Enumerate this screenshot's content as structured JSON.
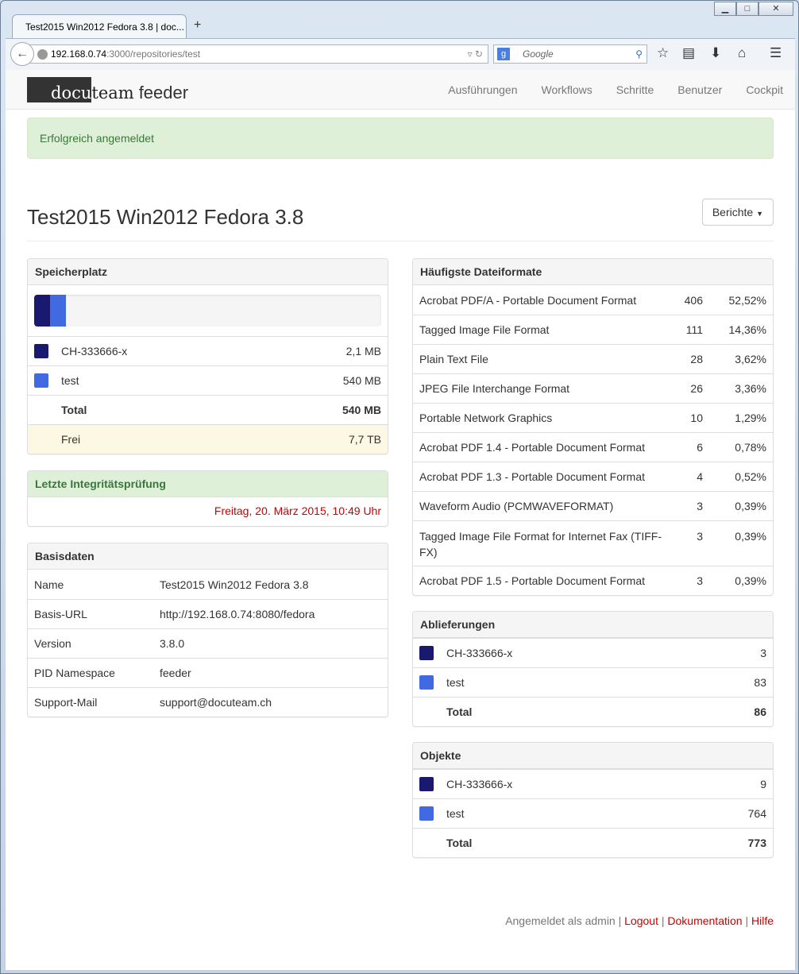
{
  "browser": {
    "tab_title": "Test2015 Win2012 Fedora 3.8 | doc...",
    "url_host": "192.168.0.74",
    "url_path": ":3000/repositories/test",
    "search_placeholder": "Google"
  },
  "nav": {
    "logo_docu": "docu",
    "logo_team": "team",
    "logo_feeder": "feeder",
    "items": [
      "Ausführungen",
      "Workflows",
      "Schritte",
      "Benutzer",
      "Cockpit"
    ]
  },
  "alert": "Erfolgreich angemeldet",
  "title": "Test2015 Win2012 Fedora 3.8",
  "reports_button": "Berichte",
  "colors": {
    "dark": "#191970",
    "blue": "#4169e1"
  },
  "storage": {
    "title": "Speicherplatz",
    "bar_percent": [
      4.6,
      4.6
    ],
    "rows": [
      {
        "name": "CH-333666-x",
        "value": "2,1 MB"
      },
      {
        "name": "test",
        "value": "540 MB"
      }
    ],
    "total_label": "Total",
    "total": "540 MB",
    "free_label": "Frei",
    "free": "7,7 TB"
  },
  "integrity": {
    "title": "Letzte Integritätsprüfung",
    "date": "Freitag, 20. März 2015, 10:49 Uhr"
  },
  "basis": {
    "title": "Basisdaten",
    "rows": [
      {
        "k": "Name",
        "v": "Test2015 Win2012 Fedora 3.8"
      },
      {
        "k": "Basis-URL",
        "v": "http://192.168.0.74:8080/fedora"
      },
      {
        "k": "Version",
        "v": "3.8.0"
      },
      {
        "k": "PID Namespace",
        "v": "feeder"
      },
      {
        "k": "Support-Mail",
        "v": "support@docuteam.ch"
      }
    ]
  },
  "formats": {
    "title": "Häufigste Dateiformate",
    "rows": [
      {
        "n": "Acrobat PDF/A - Portable Document Format",
        "c": "406",
        "p": "52,52%"
      },
      {
        "n": "Tagged Image File Format",
        "c": "111",
        "p": "14,36%"
      },
      {
        "n": "Plain Text File",
        "c": "28",
        "p": "3,62%"
      },
      {
        "n": "JPEG File Interchange Format",
        "c": "26",
        "p": "3,36%"
      },
      {
        "n": "Portable Network Graphics",
        "c": "10",
        "p": "1,29%"
      },
      {
        "n": "Acrobat PDF 1.4 - Portable Document Format",
        "c": "6",
        "p": "0,78%"
      },
      {
        "n": "Acrobat PDF 1.3 - Portable Document Format",
        "c": "4",
        "p": "0,52%"
      },
      {
        "n": "Waveform Audio (PCMWAVEFORMAT)",
        "c": "3",
        "p": "0,39%"
      },
      {
        "n": "Tagged Image File Format for Internet Fax (TIFF-FX)",
        "c": "3",
        "p": "0,39%"
      },
      {
        "n": "Acrobat PDF 1.5 - Portable Document Format",
        "c": "3",
        "p": "0,39%"
      }
    ]
  },
  "deliveries": {
    "title": "Ablieferungen",
    "rows": [
      {
        "name": "CH-333666-x",
        "value": "3"
      },
      {
        "name": "test",
        "value": "83"
      }
    ],
    "total_label": "Total",
    "total": "86"
  },
  "objects": {
    "title": "Objekte",
    "rows": [
      {
        "name": "CH-333666-x",
        "value": "9"
      },
      {
        "name": "test",
        "value": "764"
      }
    ],
    "total_label": "Total",
    "total": "773"
  },
  "footer": {
    "logged_in": "Angemeldet als admin",
    "logout": "Logout",
    "docs": "Dokumentation",
    "help": "Hilfe"
  }
}
